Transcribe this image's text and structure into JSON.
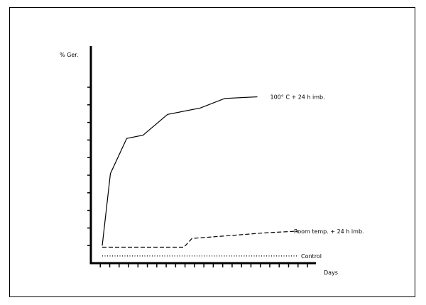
{
  "chart_data": {
    "type": "line",
    "title": "",
    "xlabel": "Days",
    "ylabel": "% Ger.",
    "x_ticks": 23,
    "y_ticks": 10,
    "x": [
      0,
      2,
      5,
      8,
      13,
      19,
      23,
      32
    ],
    "series": [
      {
        "name": "100° C + 24 h imb.",
        "style": "solid",
        "points": [
          [
            0,
            1.1
          ],
          [
            1,
            5.6
          ],
          [
            3,
            7.8
          ],
          [
            5,
            8.0
          ],
          [
            8,
            9.3
          ],
          [
            12,
            9.7
          ],
          [
            15,
            10.3
          ],
          [
            19,
            10.4
          ]
        ]
      },
      {
        "name": "Room temp. + 24 h imb.",
        "style": "dashed",
        "points": [
          [
            0,
            1.0
          ],
          [
            2,
            1.0
          ],
          [
            6,
            1.0
          ],
          [
            10,
            1.0
          ],
          [
            11,
            1.55
          ],
          [
            15,
            1.7
          ],
          [
            20,
            1.9
          ],
          [
            24,
            2.0
          ]
        ]
      },
      {
        "name": "Control",
        "style": "dotted",
        "points": [
          [
            0,
            0.45
          ],
          [
            10,
            0.45
          ],
          [
            19,
            0.45
          ],
          [
            24,
            0.45
          ]
        ]
      }
    ],
    "xlim": [
      0,
      24
    ],
    "ylim": [
      0,
      11
    ]
  }
}
